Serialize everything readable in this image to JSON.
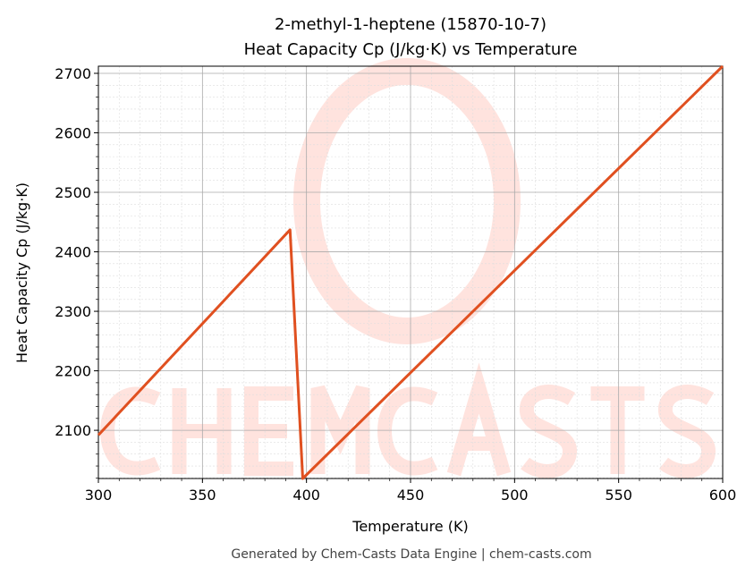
{
  "chart_data": {
    "type": "line",
    "title": "2-methyl-1-heptene (15870-10-7)",
    "subtitle": "Heat Capacity Cp (J/kg·K) vs Temperature",
    "xlabel": "Temperature (K)",
    "ylabel": "Heat Capacity Cp (J/kg·K)",
    "xlim": [
      300,
      600
    ],
    "ylim": [
      2019,
      2712
    ],
    "xticks": [
      300,
      350,
      400,
      450,
      500,
      550,
      600
    ],
    "yticks": [
      2100,
      2200,
      2300,
      2400,
      2500,
      2600,
      2700
    ],
    "grid": true,
    "color": "#e05020",
    "series": [
      {
        "name": "Cp",
        "x": [
          300,
          392.1,
          398.2,
          600
        ],
        "y": [
          2092,
          2437,
          2019,
          2712
        ]
      }
    ],
    "footer": "Generated by Chem-Casts Data Engine | chem-casts.com",
    "watermark": "CHEMCASTS"
  }
}
